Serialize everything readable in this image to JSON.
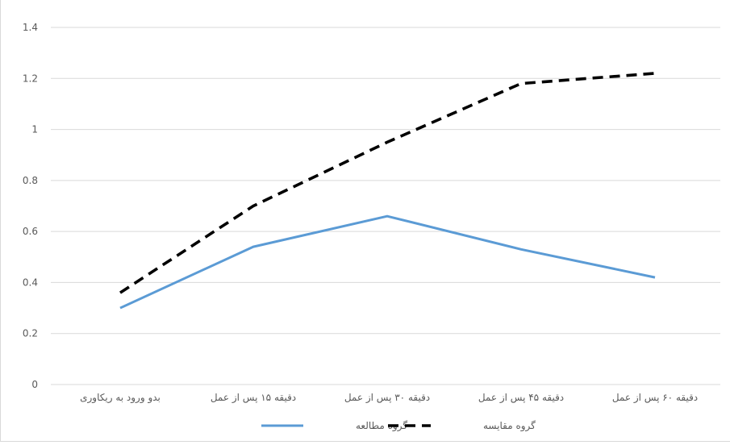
{
  "chart_data": {
    "type": "line",
    "categories": [
      "بدو ورود به ریکاوری",
      "دقیقه ۱۵ پس از عمل",
      "دقیقه ۳۰ پس از عمل",
      "دقیقه ۴۵ پس از عمل",
      "دقیقه ۶۰ پس از عمل"
    ],
    "series": [
      {
        "name": "گروه مطالعه",
        "values": [
          0.3,
          0.54,
          0.66,
          0.53,
          0.42
        ],
        "color": "#5b9bd5",
        "style": "solid"
      },
      {
        "name": "گروه مقایسه",
        "values": [
          0.36,
          0.7,
          0.95,
          1.18,
          1.22
        ],
        "color": "#000000",
        "style": "dashed"
      }
    ],
    "yticks": [
      "0",
      "0.2",
      "0.4",
      "0.6",
      "0.8",
      "1",
      "1.2",
      "1.4"
    ],
    "ylim": [
      0,
      1.4
    ],
    "grid": true,
    "legend_position": "bottom"
  }
}
